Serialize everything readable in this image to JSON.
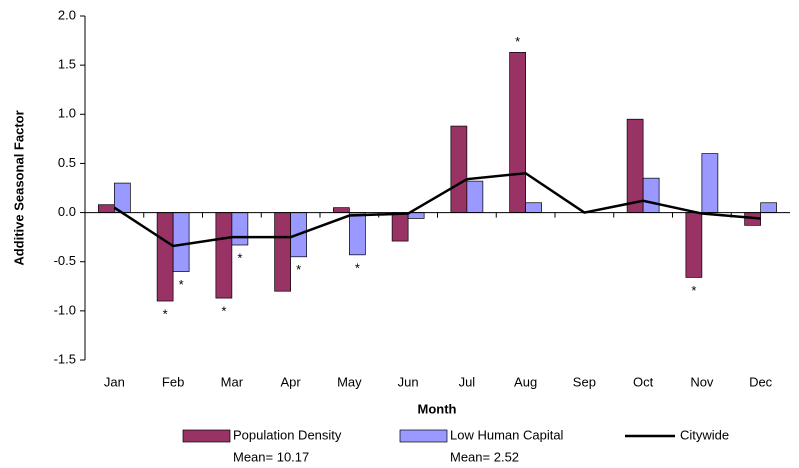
{
  "chart_data": {
    "type": "bar",
    "y_label": "Additive Seasonal Factor",
    "x_label": "Month",
    "categories": [
      "Jan",
      "Feb",
      "Mar",
      "Apr",
      "May",
      "Jun",
      "Jul",
      "Aug",
      "Sep",
      "Oct",
      "Nov",
      "Dec"
    ],
    "series": [
      {
        "name": "Population Density",
        "note": "Mean= 10.17",
        "kind": "bar",
        "color": "#993366",
        "values": [
          0.08,
          -0.9,
          -0.87,
          -0.8,
          0.05,
          -0.29,
          0.88,
          1.63,
          0,
          0.95,
          -0.66,
          -0.13
        ]
      },
      {
        "name": "Low  Human Capital",
        "note": "Mean= 2.52",
        "kind": "bar",
        "color": "#9999ff",
        "values": [
          0.3,
          -0.6,
          -0.33,
          -0.45,
          -0.43,
          -0.06,
          0.32,
          0.1,
          0,
          0.35,
          0.6,
          0.1
        ]
      },
      {
        "name": "Citywide",
        "kind": "line",
        "color": "#000000",
        "values": [
          0.05,
          -0.34,
          -0.25,
          -0.25,
          -0.03,
          -0.01,
          0.34,
          0.4,
          0.0,
          0.12,
          -0.01,
          -0.06
        ]
      }
    ],
    "annotations": [
      {
        "text": "*",
        "series": 0,
        "index": 1
      },
      {
        "text": "*",
        "series": 1,
        "index": 1
      },
      {
        "text": "*",
        "series": 0,
        "index": 2
      },
      {
        "text": "*",
        "series": 1,
        "index": 2
      },
      {
        "text": "*",
        "series": 1,
        "index": 3
      },
      {
        "text": "*",
        "series": 1,
        "index": 4
      },
      {
        "text": "*",
        "series": 0,
        "index": 7
      },
      {
        "text": "*",
        "series": 0,
        "index": 10
      }
    ],
    "ylim": [
      -1.5,
      2.0
    ],
    "yticks": [
      {
        "value": -1.5,
        "label": "-1.5"
      },
      {
        "value": -1.0,
        "label": "-1.0"
      },
      {
        "value": -0.5,
        "label": "-0.5"
      },
      {
        "value": 0,
        "label": "0.0"
      },
      {
        "value": 0.5,
        "label": "0.5"
      },
      {
        "value": 1.0,
        "label": "1.0"
      },
      {
        "value": 1.5,
        "label": "1.5"
      },
      {
        "value": 2.0,
        "label": "2.0"
      }
    ],
    "grid": false,
    "legend": "bottom"
  }
}
